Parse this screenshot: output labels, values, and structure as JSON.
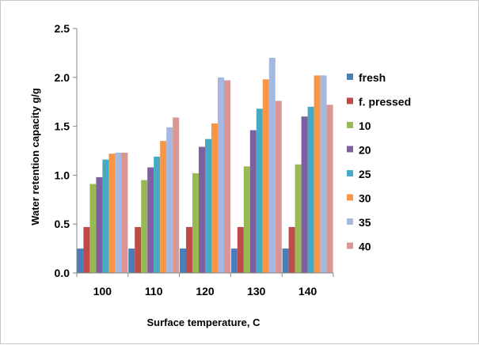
{
  "chart_data": {
    "type": "bar",
    "title": "",
    "xlabel": "Surface temperature, C",
    "ylabel": "Water retention capacity g/g",
    "categories": [
      "100",
      "110",
      "120",
      "130",
      "140"
    ],
    "ylim": [
      0,
      2.5
    ],
    "yticks": [
      "0.0",
      "0.5",
      "1.0",
      "1.5",
      "2.0",
      "2.5"
    ],
    "grid": false,
    "legend_position": "right",
    "series": [
      {
        "name": "fresh",
        "color": "#4a7ebb",
        "values": [
          0.25,
          0.25,
          0.25,
          0.25,
          0.25
        ]
      },
      {
        "name": "f. pressed",
        "color": "#be4b48",
        "values": [
          0.47,
          0.47,
          0.47,
          0.47,
          0.47
        ]
      },
      {
        "name": "10",
        "color": "#98b954",
        "values": [
          0.91,
          0.95,
          1.02,
          1.09,
          1.11
        ]
      },
      {
        "name": "20",
        "color": "#7d60a0",
        "values": [
          0.98,
          1.08,
          1.29,
          1.46,
          1.6
        ]
      },
      {
        "name": "25",
        "color": "#46aac5",
        "values": [
          1.16,
          1.19,
          1.37,
          1.68,
          1.7
        ]
      },
      {
        "name": "30",
        "color": "#f79646",
        "values": [
          1.22,
          1.35,
          1.53,
          1.98,
          2.02
        ]
      },
      {
        "name": "35",
        "color": "#a5b9e0",
        "values": [
          1.23,
          1.49,
          2.0,
          2.2,
          2.02
        ]
      },
      {
        "name": "40",
        "color": "#d99694",
        "values": [
          1.23,
          1.59,
          1.97,
          1.76,
          1.72
        ]
      }
    ]
  }
}
